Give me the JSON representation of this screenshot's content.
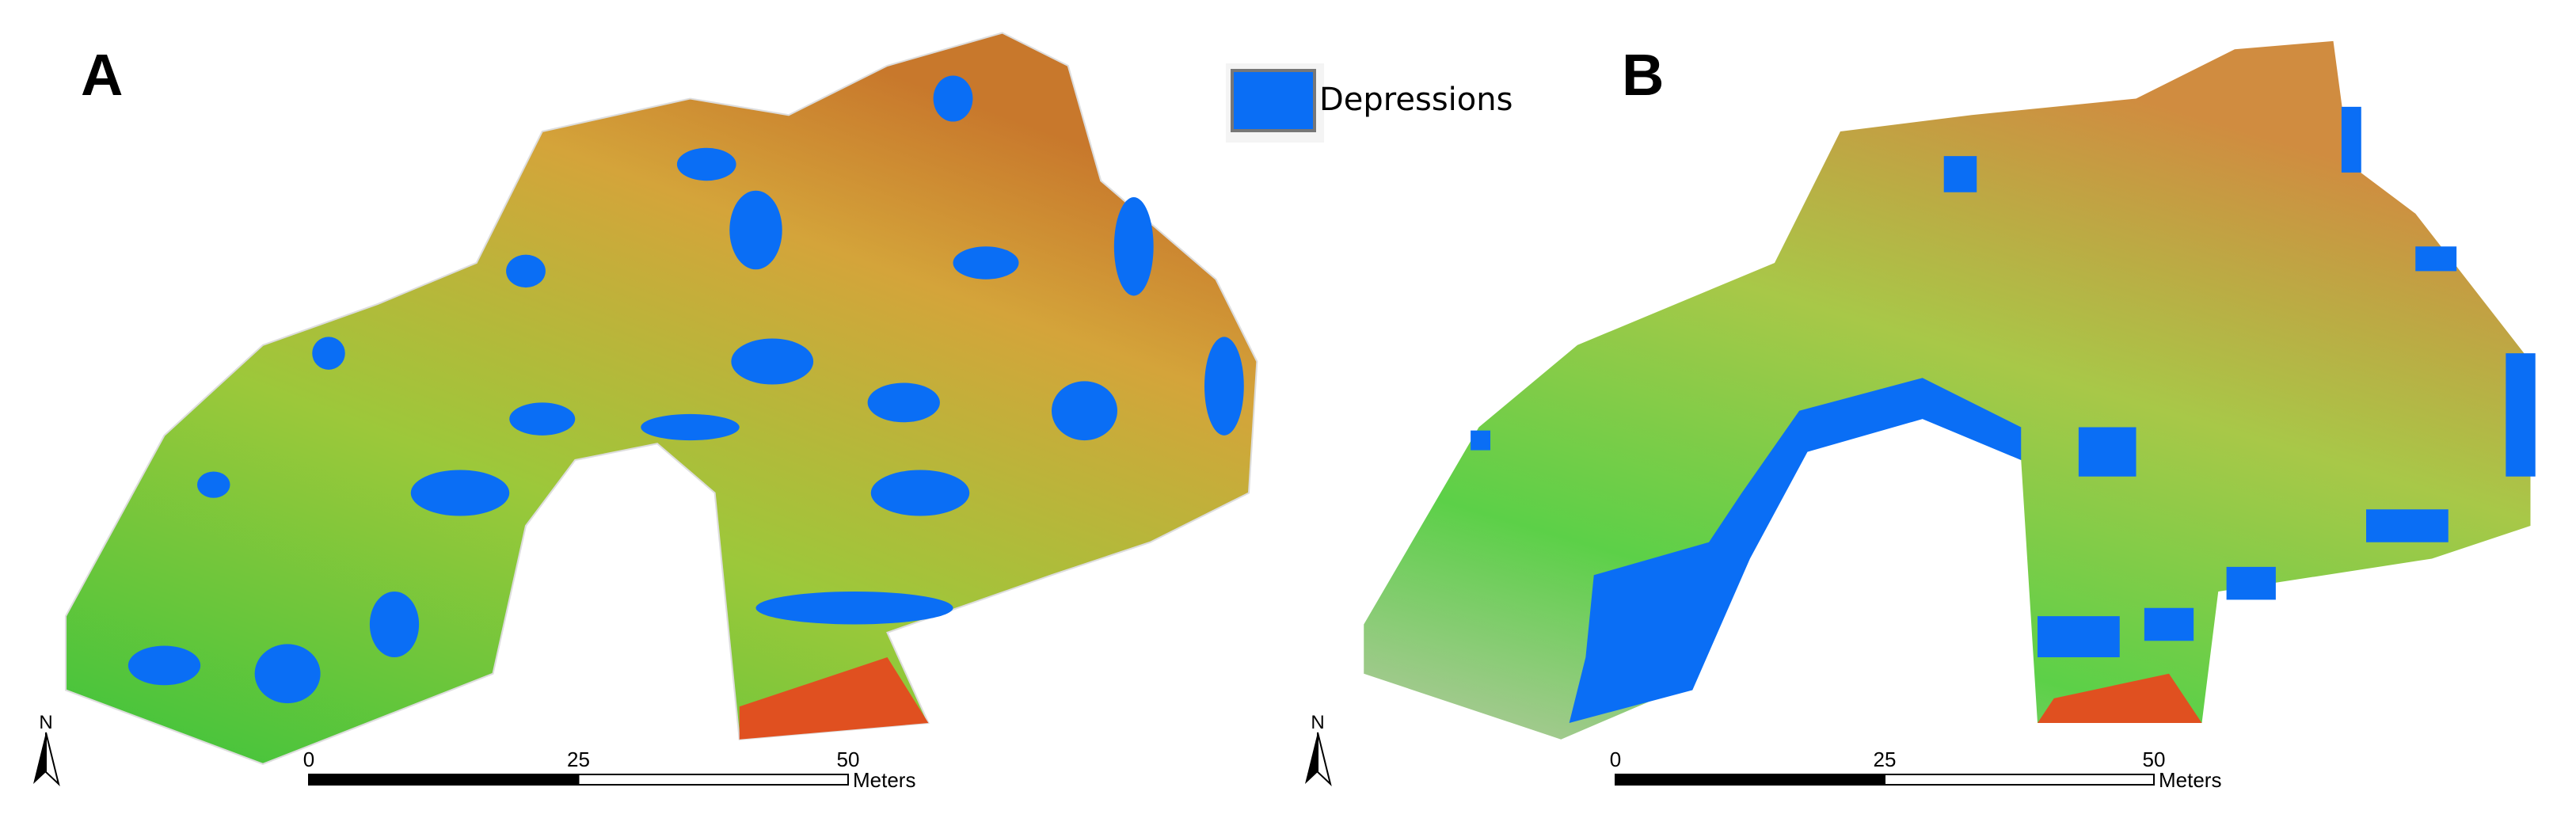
{
  "legend": {
    "label": "Depressions"
  },
  "panels": [
    {
      "label": "A",
      "scale_bar": {
        "ticks": [
          0,
          25,
          50
        ],
        "unit": "Meters"
      },
      "north": "N"
    },
    {
      "label": "B",
      "scale_bar": {
        "ticks": [
          0,
          25,
          50
        ],
        "unit": "Meters"
      },
      "north": "N"
    }
  ]
}
